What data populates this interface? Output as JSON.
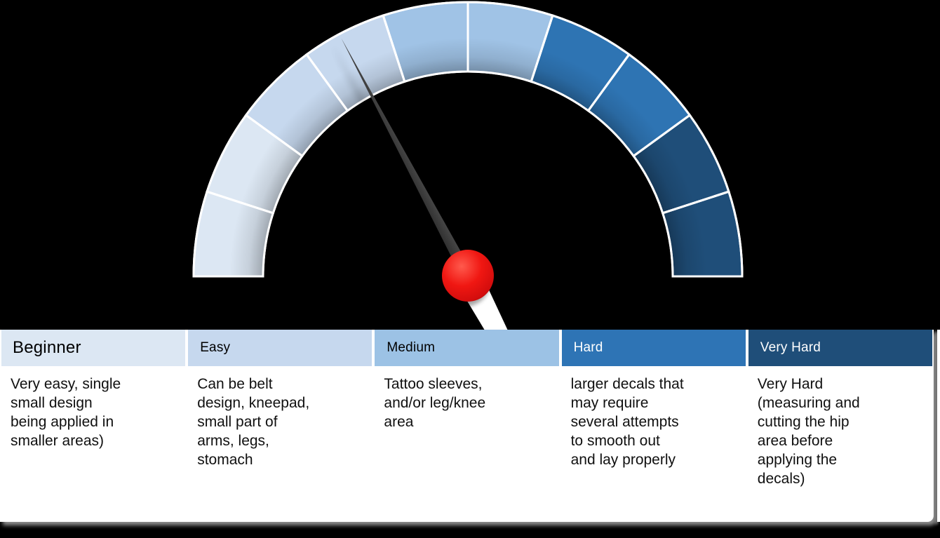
{
  "slide": {
    "background_color": "#000000",
    "card_color": "#ffffff"
  },
  "chart_data": {
    "type": "gauge",
    "title": "",
    "min": 0,
    "max": 100,
    "needle_value_pct": 34.5,
    "needle_angle_deg": 118,
    "arc_start_angle_deg": 180,
    "arc_end_angle_deg": 0,
    "segment_border_color": "#ffffff",
    "needle": {
      "body_color": "#161616",
      "hub_color": "#ee1313",
      "tail_color": "#ffffff"
    },
    "segments": [
      {
        "from_deg": 180,
        "to_deg": 162,
        "color": "#dce7f3",
        "level": "Beginner"
      },
      {
        "from_deg": 162,
        "to_deg": 144,
        "color": "#dce7f3",
        "level": "Beginner"
      },
      {
        "from_deg": 144,
        "to_deg": 126,
        "color": "#c6d8ee",
        "level": "Easy"
      },
      {
        "from_deg": 126,
        "to_deg": 108,
        "color": "#c6d8ee",
        "level": "Easy"
      },
      {
        "from_deg": 108,
        "to_deg": 90,
        "color": "#a0c3e6",
        "level": "Medium"
      },
      {
        "from_deg": 90,
        "to_deg": 72,
        "color": "#a0c3e6",
        "level": "Medium"
      },
      {
        "from_deg": 72,
        "to_deg": 54,
        "color": "#2e74b3",
        "level": "Hard"
      },
      {
        "from_deg": 54,
        "to_deg": 36,
        "color": "#2e74b3",
        "level": "Hard"
      },
      {
        "from_deg": 36,
        "to_deg": 18,
        "color": "#1f4e79",
        "level": "Very Hard"
      },
      {
        "from_deg": 18,
        "to_deg": 0,
        "color": "#1f4e79",
        "level": "Very Hard"
      }
    ],
    "legend_position": "table-below"
  },
  "table": {
    "columns": [
      {
        "label": "Beginner",
        "header_bg": "#dce7f3",
        "header_text_color": "#000000",
        "description": "Very easy, single\nsmall design\nbeing applied in\nsmaller areas)"
      },
      {
        "label": "Easy",
        "header_bg": "#c6d8ee",
        "header_text_color": "#000000",
        "description": "Can be belt\ndesign, kneepad,\nsmall part of\narms, legs,\nstomach"
      },
      {
        "label": "Medium",
        "header_bg": "#9cc2e5",
        "header_text_color": "#000000",
        "description": "Tattoo sleeves,\nand/or leg/knee\narea"
      },
      {
        "label": "Hard",
        "header_bg": "#2e74b5",
        "header_text_color": "#ffffff",
        "description": "larger decals that\nmay require\nseveral attempts\nto smooth out\nand lay properly"
      },
      {
        "label": "Very Hard",
        "header_bg": "#1f4e79",
        "header_text_color": "#ffffff",
        "description": "Very Hard\n(measuring and\ncutting the hip\narea before\napplying the\ndecals)"
      }
    ]
  }
}
